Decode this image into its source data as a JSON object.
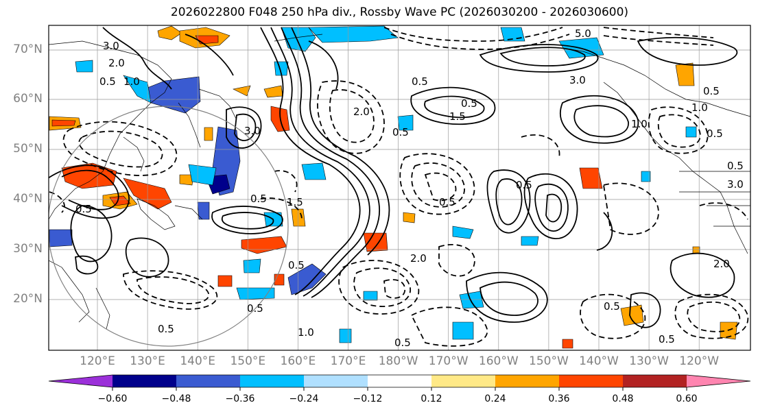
{
  "title": "2026022800 F048 250 hPa div., Rossby Wave PC (2026030200 - 2026030600)",
  "lat_labels": [
    "70°N",
    "60°N",
    "50°N",
    "40°N",
    "30°N",
    "20°N"
  ],
  "lon_labels": [
    "120°E",
    "130°E",
    "140°E",
    "150°E",
    "160°E",
    "170°E",
    "180°W",
    "170°W",
    "160°W",
    "150°W",
    "140°W",
    "130°W",
    "120°W"
  ],
  "colorbar": {
    "ticks": [
      "−0.60",
      "−0.48",
      "−0.36",
      "−0.24",
      "−0.12",
      "0.12",
      "0.24",
      "0.36",
      "0.48",
      "0.60"
    ],
    "colors": [
      "#9b30d9",
      "#00008b",
      "#3a5bd1",
      "#00bfff",
      "#b0e0ff",
      "#ffffff",
      "#ffe987",
      "#ffa500",
      "#ff4500",
      "#b22222",
      "#ff85b0"
    ]
  },
  "contour_labels": [
    "5.0",
    "3.0",
    "2.0",
    "0.5",
    "1.0",
    "1.5",
    "0.5",
    "3.0",
    "0.5",
    "3.0",
    "2.0",
    "0.5",
    "1.5",
    "0.5",
    "0.5",
    "1.0",
    "0.5",
    "0.5",
    "3.0",
    "0.5",
    "1.0",
    "2.0",
    "2.0",
    "0.5",
    "0.5",
    "1.0",
    "0.5",
    "0.5",
    "0.5",
    "0.5",
    "0.5",
    "0.5"
  ]
}
